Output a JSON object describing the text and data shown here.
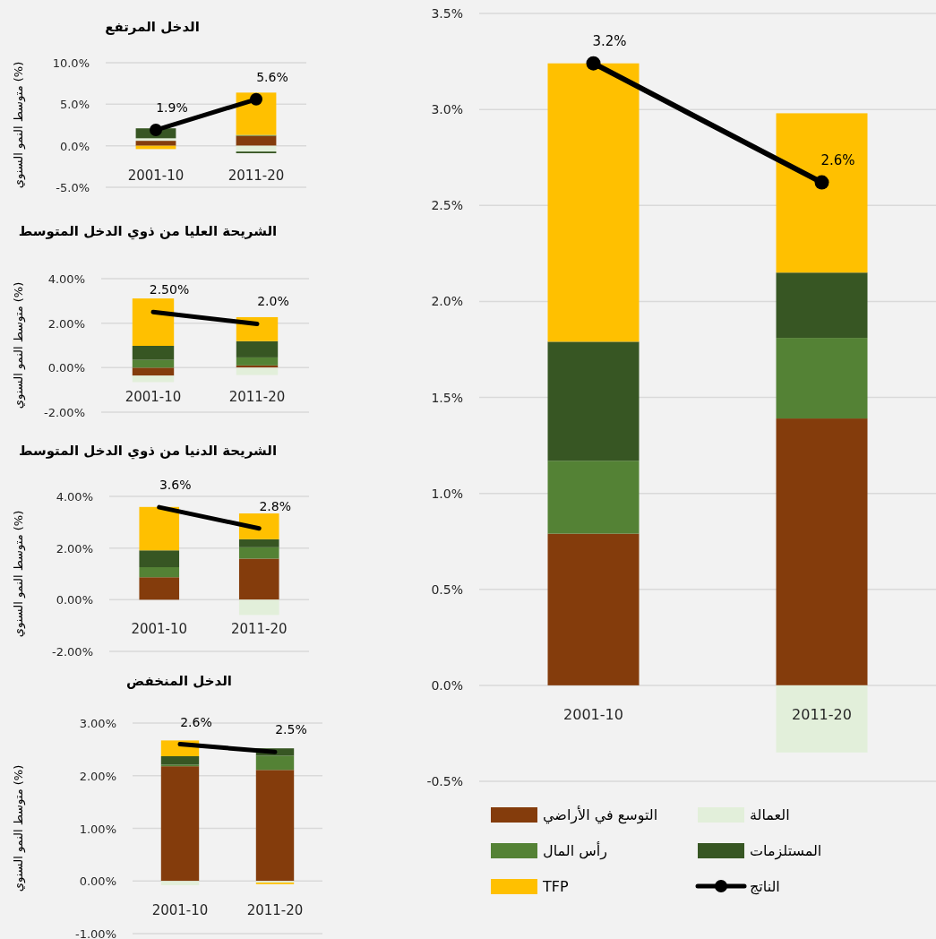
{
  "chart_data": [
    {
      "type": "bar",
      "stacked": true,
      "title": "الدخل المرتفع",
      "ylabel": "متوسط النمو السنوي (%)",
      "categories": [
        "2001-10",
        "2011-20"
      ],
      "ylim": [
        -5,
        10
      ],
      "yticks": [
        {
          "value": -5,
          "label": "-5.0%"
        },
        {
          "value": 0,
          "label": "0.0%"
        },
        {
          "value": 5,
          "label": "5.0%"
        },
        {
          "value": 10,
          "label": "10.0%"
        }
      ],
      "grid": "y",
      "marker": "circle",
      "series": [
        {
          "color": "#843c0c",
          "values": [
            0.6,
            1.2
          ]
        },
        {
          "color": "#e2efda",
          "values": [
            0.3,
            -0.7
          ]
        },
        {
          "color": "#548235",
          "values": [
            0.0,
            0.1
          ]
        },
        {
          "color": "#375623",
          "values": [
            1.2,
            -0.2
          ]
        },
        {
          "color": "#ffc000",
          "values": [
            -0.4,
            5.1
          ]
        },
        {
          "type": "line",
          "color": "#000000",
          "values": [
            1.9,
            5.6
          ],
          "value_labels": [
            "1.9%",
            "5.6%"
          ]
        }
      ]
    },
    {
      "type": "bar",
      "stacked": true,
      "title": "الشريحة العليا من ذوي الدخل المتوسط",
      "ylabel": "متوسط النمو السنوي (%)",
      "categories": [
        "2001-10",
        "2011-20"
      ],
      "ylim": [
        -2,
        4
      ],
      "yticks": [
        {
          "value": -2,
          "label": "-2.00%"
        },
        {
          "value": 0,
          "label": "0.00%"
        },
        {
          "value": 2,
          "label": "2.00%"
        },
        {
          "value": 4,
          "label": "4.00%"
        }
      ],
      "grid": "y",
      "series": [
        {
          "color": "#843c0c",
          "values": [
            -0.36,
            0.1
          ]
        },
        {
          "color": "#e2efda",
          "values": [
            -0.29,
            -0.33
          ]
        },
        {
          "color": "#548235",
          "values": [
            0.35,
            0.36
          ]
        },
        {
          "color": "#375623",
          "values": [
            0.63,
            0.73
          ]
        },
        {
          "color": "#ffc000",
          "values": [
            2.13,
            1.08
          ]
        },
        {
          "type": "line",
          "color": "#000000",
          "values": [
            2.5,
            1.97
          ],
          "value_labels": [
            "2.50%",
            "2.0%"
          ]
        }
      ]
    },
    {
      "type": "bar",
      "stacked": true,
      "title": "الشريحة الدنيا من ذوي الدخل المتوسط",
      "ylabel": "متوسط النمو السنوي (%)",
      "categories": [
        "2001-10",
        "2011-20"
      ],
      "ylim": [
        -2,
        4
      ],
      "yticks": [
        {
          "value": -2,
          "label": "-2.00%"
        },
        {
          "value": 0,
          "label": "0.00%"
        },
        {
          "value": 2,
          "label": "2.00%"
        },
        {
          "value": 4,
          "label": "4.00%"
        }
      ],
      "grid": "y",
      "series": [
        {
          "color": "#843c0c",
          "values": [
            0.87,
            1.59
          ]
        },
        {
          "color": "#e2efda",
          "values": [
            0.0,
            -0.59
          ]
        },
        {
          "color": "#548235",
          "values": [
            0.39,
            0.44
          ]
        },
        {
          "color": "#375623",
          "values": [
            0.65,
            0.31
          ]
        },
        {
          "color": "#ffc000",
          "values": [
            1.68,
            1.0
          ]
        },
        {
          "type": "line",
          "color": "#000000",
          "values": [
            3.58,
            2.76
          ],
          "value_labels": [
            "3.6%",
            "2.8%"
          ]
        }
      ]
    },
    {
      "type": "bar",
      "stacked": true,
      "title": "الدخل المنخفض",
      "ylabel": "متوسط النمو السنوي (%)",
      "categories": [
        "2001-10",
        "2011-20"
      ],
      "ylim": [
        -1,
        3
      ],
      "yticks": [
        {
          "value": -1,
          "label": "-1.00%"
        },
        {
          "value": 0,
          "label": "0.00%"
        },
        {
          "value": 1,
          "label": "1.00%"
        },
        {
          "value": 2,
          "label": "2.00%"
        },
        {
          "value": 3,
          "label": "3.00%"
        }
      ],
      "grid": "y",
      "series": [
        {
          "color": "#843c0c",
          "values": [
            2.18,
            2.11
          ]
        },
        {
          "color": "#e2efda",
          "values": [
            -0.08,
            -0.03
          ]
        },
        {
          "color": "#548235",
          "values": [
            0.03,
            0.27
          ]
        },
        {
          "color": "#375623",
          "values": [
            0.16,
            0.14
          ]
        },
        {
          "color": "#ffc000",
          "values": [
            0.3,
            -0.03
          ]
        },
        {
          "type": "line",
          "color": "#000000",
          "values": [
            2.6,
            2.45
          ],
          "value_labels": [
            "2.6%",
            "2.5%"
          ]
        }
      ]
    },
    {
      "type": "bar",
      "stacked": true,
      "categories": [
        "2001-10",
        "2011-20"
      ],
      "ylim": [
        -0.5,
        3.5
      ],
      "yticks": [
        {
          "value": -0.5,
          "label": "-0.5%"
        },
        {
          "value": 0,
          "label": "0.0%"
        },
        {
          "value": 0.5,
          "label": "0.5%"
        },
        {
          "value": 1,
          "label": "1.0%"
        },
        {
          "value": 1.5,
          "label": "1.5%"
        },
        {
          "value": 2,
          "label": "2.0%"
        },
        {
          "value": 2.5,
          "label": "2.5%"
        },
        {
          "value": 3,
          "label": "3.0%"
        },
        {
          "value": 3.5,
          "label": "3.5%"
        }
      ],
      "grid": "y",
      "legend": "bottom",
      "marker": "circle",
      "series": [
        {
          "name": "التوسع في الأراضي",
          "color": "#843c0c",
          "values": [
            0.79,
            1.39
          ]
        },
        {
          "name": "العمالة",
          "color": "#e2efda",
          "values": [
            0.0,
            -0.35
          ]
        },
        {
          "name": "رأس المال",
          "color": "#548235",
          "values": [
            0.38,
            0.42
          ]
        },
        {
          "name": "المستلزمات",
          "color": "#375623",
          "values": [
            0.62,
            0.34
          ]
        },
        {
          "name": "TFP",
          "color": "#ffc000",
          "values": [
            1.45,
            0.83
          ]
        },
        {
          "name": "الناتج",
          "type": "line",
          "color": "#000000",
          "values": [
            3.24,
            2.62
          ],
          "value_labels": [
            "3.2%",
            "2.6%"
          ]
        }
      ]
    }
  ]
}
